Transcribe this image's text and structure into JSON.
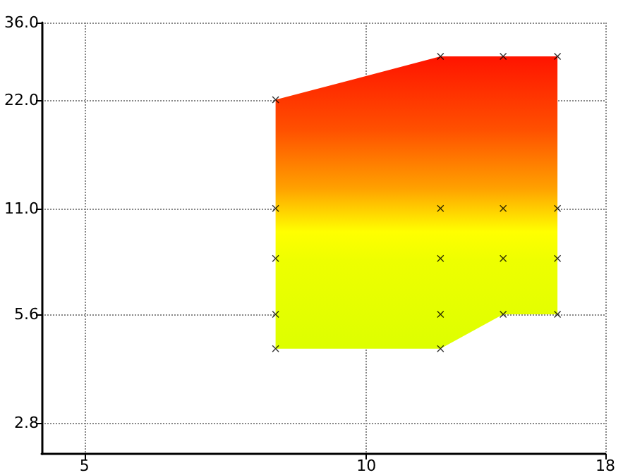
{
  "chart_data": {
    "type": "scatter",
    "series": [
      {
        "type": "area",
        "x": [
          8,
          12,
          14,
          16
        ],
        "values": [
          null,
          null,
          null,
          null
        ],
        "lower": [
          4.5,
          4.5,
          5.6,
          5.6
        ],
        "upper": [
          22,
          29,
          29,
          29
        ]
      },
      {
        "color": "#000000",
        "x": [
          8,
          8,
          8,
          8,
          8,
          12,
          12,
          12,
          12,
          12,
          14,
          14,
          14,
          14,
          16,
          16,
          16,
          16
        ],
        "values": [
          22,
          11,
          8,
          5.6,
          4.5,
          29,
          11,
          8,
          5.6,
          4.5,
          29,
          11,
          8,
          5.6,
          29,
          11,
          8,
          5.6
        ]
      }
    ],
    "xlim": [
      4.5,
      18
    ],
    "xticks": [
      5,
      10,
      18
    ],
    "ylim": [
      2.3,
      36
    ],
    "yticks": [
      2.8,
      5.6,
      {
        "value": 11,
        "label": "11.0"
      },
      {
        "value": 22,
        "label": "22.0"
      },
      {
        "value": 36,
        "label": "36.0"
      }
    ],
    "log": "xy",
    "grid": true,
    "marker": "cross"
  }
}
